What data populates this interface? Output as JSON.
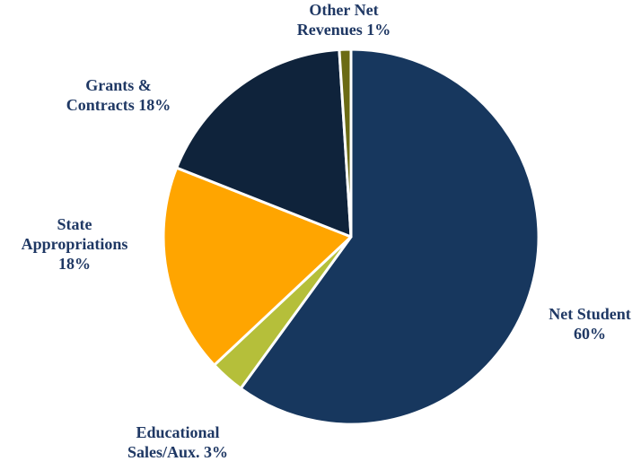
{
  "chart_data": {
    "type": "pie",
    "slices": [
      {
        "label_line1": "Net Student",
        "label_line2": "60%",
        "value": 60,
        "color": "#17375E"
      },
      {
        "label_line1": "Educational",
        "label_line2": "Sales/Aux. 3%",
        "value": 3,
        "color": "#B5BF3A"
      },
      {
        "label_line1": "State",
        "label_line2": "Appropriations",
        "label_line3": "18%",
        "value": 18,
        "color": "#FFA500"
      },
      {
        "label_line1": "Grants &",
        "label_line2": "Contracts 18%",
        "value": 18,
        "color": "#0F233B"
      },
      {
        "label_line1": "Other Net",
        "label_line2": "Revenues 1%",
        "value": 1,
        "color": "#6B6B14"
      }
    ],
    "start_angle_deg": 0,
    "direction": "clockwise",
    "slice_border_color": "#FFFFFF"
  }
}
